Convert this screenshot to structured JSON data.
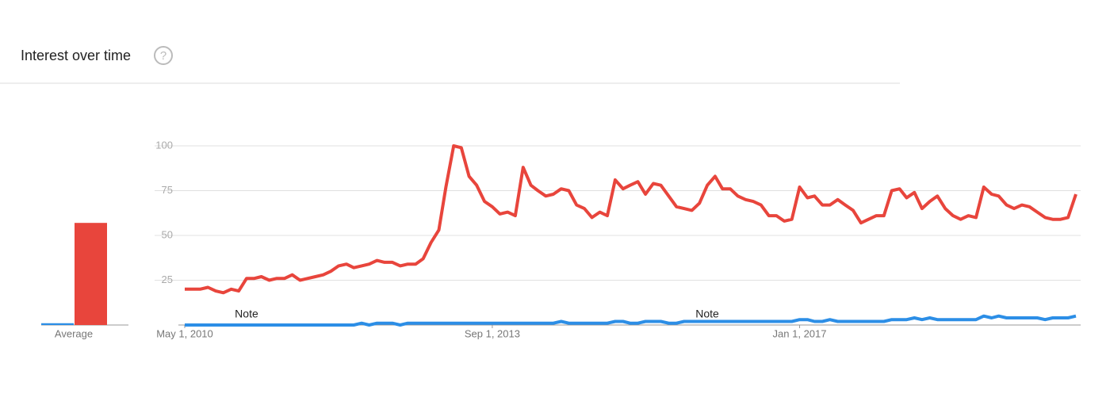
{
  "header": {
    "title": "Interest over time",
    "help_icon": "?"
  },
  "chart_data": {
    "type": "line",
    "x": [
      "2010-05-01",
      "2010-06-01",
      "2010-07-01",
      "2010-08-01",
      "2010-09-01",
      "2010-10-01",
      "2010-11-01",
      "2010-12-01",
      "2011-01-01",
      "2011-02-01",
      "2011-03-01",
      "2011-04-01",
      "2011-05-01",
      "2011-06-01",
      "2011-07-01",
      "2011-08-01",
      "2011-09-01",
      "2011-10-01",
      "2011-11-01",
      "2011-12-01",
      "2012-01-01",
      "2012-02-01",
      "2012-03-01",
      "2012-04-01",
      "2012-05-01",
      "2012-06-01",
      "2012-07-01",
      "2012-08-01",
      "2012-09-01",
      "2012-10-01",
      "2012-11-01",
      "2012-12-01",
      "2013-01-01",
      "2013-02-01",
      "2013-03-01",
      "2013-04-01",
      "2013-05-01",
      "2013-06-01",
      "2013-07-01",
      "2013-08-01",
      "2013-09-01",
      "2013-10-01",
      "2013-11-01",
      "2013-12-01",
      "2014-01-01",
      "2014-02-01",
      "2014-03-01",
      "2014-04-01",
      "2014-05-01",
      "2014-06-01",
      "2014-07-01",
      "2014-08-01",
      "2014-09-01",
      "2014-10-01",
      "2014-11-01",
      "2014-12-01",
      "2015-01-01",
      "2015-02-01",
      "2015-03-01",
      "2015-04-01",
      "2015-05-01",
      "2015-06-01",
      "2015-07-01",
      "2015-08-01",
      "2015-09-01",
      "2015-10-01",
      "2015-11-01",
      "2015-12-01",
      "2016-01-01",
      "2016-02-01",
      "2016-03-01",
      "2016-04-01",
      "2016-05-01",
      "2016-06-01",
      "2016-07-01",
      "2016-08-01",
      "2016-09-01",
      "2016-10-01",
      "2016-11-01",
      "2016-12-01",
      "2017-01-01",
      "2017-02-01",
      "2017-03-01",
      "2017-04-01",
      "2017-05-01",
      "2017-06-01",
      "2017-07-01",
      "2017-08-01",
      "2017-09-01",
      "2017-10-01",
      "2017-11-01",
      "2017-12-01",
      "2018-01-01",
      "2018-02-01",
      "2018-03-01",
      "2018-04-01",
      "2018-05-01",
      "2018-06-01",
      "2018-07-01",
      "2018-08-01",
      "2018-09-01",
      "2018-10-01",
      "2018-11-01",
      "2018-12-01",
      "2019-01-01",
      "2019-02-01",
      "2019-03-01",
      "2019-04-01",
      "2019-05-01",
      "2019-06-01",
      "2019-07-01",
      "2019-08-01",
      "2019-09-01",
      "2019-10-01",
      "2019-11-01",
      "2019-12-01",
      "2020-01-01"
    ],
    "series": [
      {
        "color": "#2c8ee6",
        "average": 1,
        "values": [
          0,
          0,
          0,
          0,
          0,
          0,
          0,
          0,
          0,
          0,
          0,
          0,
          0,
          0,
          0,
          0,
          0,
          0,
          0,
          0,
          0,
          0,
          0,
          1,
          0,
          1,
          1,
          1,
          0,
          1,
          1,
          1,
          1,
          1,
          1,
          1,
          1,
          1,
          1,
          1,
          1,
          1,
          1,
          1,
          1,
          1,
          1,
          1,
          1,
          2,
          1,
          1,
          1,
          1,
          1,
          1,
          2,
          2,
          1,
          1,
          2,
          2,
          2,
          1,
          1,
          2,
          2,
          2,
          2,
          2,
          2,
          2,
          2,
          2,
          2,
          2,
          2,
          2,
          2,
          2,
          3,
          3,
          2,
          2,
          3,
          2,
          2,
          2,
          2,
          2,
          2,
          2,
          3,
          3,
          3,
          4,
          3,
          4,
          3,
          3,
          3,
          3,
          3,
          3,
          5,
          4,
          5,
          4,
          4,
          4,
          4,
          4,
          3,
          4,
          4,
          4,
          5
        ]
      },
      {
        "color": "#e8453c",
        "average": 57,
        "values": [
          20,
          20,
          20,
          21,
          19,
          18,
          20,
          19,
          26,
          26,
          27,
          25,
          26,
          26,
          28,
          25,
          26,
          27,
          28,
          30,
          33,
          34,
          32,
          33,
          34,
          36,
          35,
          35,
          33,
          34,
          34,
          37,
          46,
          53,
          77,
          100,
          99,
          83,
          78,
          69,
          66,
          62,
          63,
          61,
          88,
          78,
          75,
          72,
          73,
          76,
          75,
          67,
          65,
          60,
          63,
          61,
          81,
          76,
          78,
          80,
          73,
          79,
          78,
          72,
          66,
          65,
          64,
          68,
          78,
          83,
          76,
          76,
          72,
          70,
          69,
          67,
          61,
          61,
          58,
          59,
          77,
          71,
          72,
          67,
          67,
          70,
          67,
          64,
          57,
          59,
          61,
          61,
          75,
          76,
          71,
          74,
          65,
          69,
          72,
          65,
          61,
          59,
          61,
          60,
          77,
          73,
          72,
          67,
          65,
          67,
          66,
          63,
          60,
          59,
          59,
          60,
          73
        ]
      }
    ],
    "average_label": "Average",
    "xlim": [
      "2010-05-01",
      "2020-01-01"
    ],
    "xticks": [
      {
        "value": "2010-05-01",
        "label": "May 1, 2010"
      },
      {
        "value": "2013-09-01",
        "label": "Sep 1, 2013"
      },
      {
        "value": "2017-01-01",
        "label": "Jan 1, 2017"
      }
    ],
    "ylim": [
      0,
      100
    ],
    "yticks": [
      25,
      50,
      75,
      100
    ],
    "grid": true,
    "annotations": [
      {
        "x": "2011-01-01",
        "text": "Note"
      },
      {
        "x": "2016-01-01",
        "text": "Note"
      }
    ]
  }
}
